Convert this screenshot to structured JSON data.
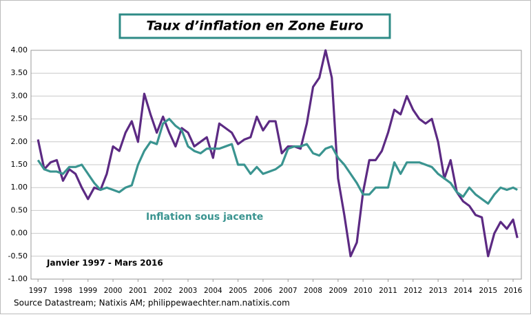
{
  "chart_data": {
    "type": "line",
    "title": "Taux d’inflation en Zone Euro",
    "annotations": [
      "Janvier 1997 - Mars 2016"
    ],
    "source": "Source Datastream; Natixis AM; philippewaechter.nam.natixis.com",
    "x": [
      1997,
      1997.25,
      1997.5,
      1997.75,
      1998,
      1998.25,
      1998.5,
      1998.75,
      1999,
      1999.25,
      1999.5,
      1999.75,
      2000,
      2000.25,
      2000.5,
      2000.75,
      2001,
      2001.25,
      2001.5,
      2001.75,
      2002,
      2002.25,
      2002.5,
      2002.75,
      2003,
      2003.25,
      2003.5,
      2003.75,
      2004,
      2004.25,
      2004.5,
      2004.75,
      2005,
      2005.25,
      2005.5,
      2005.75,
      2006,
      2006.25,
      2006.5,
      2006.75,
      2007,
      2007.25,
      2007.5,
      2007.75,
      2008,
      2008.25,
      2008.5,
      2008.75,
      2009,
      2009.25,
      2009.5,
      2009.75,
      2010,
      2010.25,
      2010.5,
      2010.75,
      2011,
      2011.25,
      2011.5,
      2011.75,
      2012,
      2012.25,
      2012.5,
      2012.75,
      2013,
      2013.25,
      2013.5,
      2013.75,
      2014,
      2014.25,
      2014.5,
      2014.75,
      2015,
      2015.25,
      2015.5,
      2015.75,
      2016,
      2016.17
    ],
    "series": [
      {
        "color": "#5c2a83",
        "values": [
          2.05,
          1.4,
          1.55,
          1.6,
          1.15,
          1.4,
          1.3,
          1.0,
          0.75,
          1.0,
          0.95,
          1.3,
          1.9,
          1.8,
          2.2,
          2.45,
          2.0,
          3.05,
          2.6,
          2.2,
          2.55,
          2.2,
          1.9,
          2.3,
          2.2,
          1.9,
          2.0,
          2.1,
          1.65,
          2.4,
          2.3,
          2.2,
          1.95,
          2.05,
          2.1,
          2.55,
          2.25,
          2.45,
          2.45,
          1.75,
          1.9,
          1.9,
          1.85,
          2.4,
          3.2,
          3.4,
          4.0,
          3.4,
          1.2,
          0.4,
          -0.5,
          -0.2,
          0.9,
          1.6,
          1.6,
          1.8,
          2.2,
          2.7,
          2.6,
          3.0,
          2.7,
          2.5,
          2.4,
          2.5,
          2.0,
          1.2,
          1.6,
          0.9,
          0.7,
          0.6,
          0.4,
          0.35,
          -0.5,
          0.0,
          0.25,
          0.1,
          0.3,
          -0.1
        ]
      },
      {
        "name": "Inflation sous jacente",
        "color": "#3a9490",
        "values": [
          1.6,
          1.4,
          1.35,
          1.35,
          1.3,
          1.45,
          1.45,
          1.5,
          1.3,
          1.1,
          0.95,
          1.0,
          0.95,
          0.9,
          1.0,
          1.05,
          1.5,
          1.8,
          2.0,
          1.95,
          2.4,
          2.5,
          2.35,
          2.25,
          1.9,
          1.8,
          1.75,
          1.85,
          1.85,
          1.85,
          1.9,
          1.95,
          1.5,
          1.5,
          1.3,
          1.45,
          1.3,
          1.35,
          1.4,
          1.5,
          1.85,
          1.9,
          1.9,
          1.95,
          1.75,
          1.7,
          1.85,
          1.9,
          1.65,
          1.5,
          1.3,
          1.1,
          0.85,
          0.85,
          1.0,
          1.0,
          1.0,
          1.55,
          1.3,
          1.55,
          1.55,
          1.55,
          1.5,
          1.45,
          1.3,
          1.2,
          1.1,
          0.9,
          0.8,
          1.0,
          0.85,
          0.75,
          0.65,
          0.85,
          1.0,
          0.95,
          1.0,
          0.95
        ]
      }
    ],
    "xlim": [
      1996.72,
      2016.33
    ],
    "xticks": [
      1997,
      1998,
      1999,
      2000,
      2001,
      2002,
      2003,
      2004,
      2005,
      2006,
      2007,
      2008,
      2009,
      2010,
      2011,
      2012,
      2013,
      2014,
      2015,
      2016
    ],
    "ylim": [
      -1,
      4
    ],
    "yticks": [
      {
        "value": 4,
        "label": "4.00"
      },
      {
        "value": 3.5,
        "label": "3.50"
      },
      {
        "value": 3,
        "label": "3.00"
      },
      {
        "value": 2.5,
        "label": "2.50"
      },
      {
        "value": 2,
        "label": "2.00"
      },
      {
        "value": 1.5,
        "label": "1.50"
      },
      {
        "value": 1,
        "label": "1.00"
      },
      {
        "value": 0.5,
        "label": "0.50"
      },
      {
        "value": 0,
        "label": "0.00"
      },
      {
        "value": -0.5,
        "label": "-0.50"
      },
      {
        "value": -1,
        "label": "-1.00"
      }
    ],
    "grid": true
  }
}
